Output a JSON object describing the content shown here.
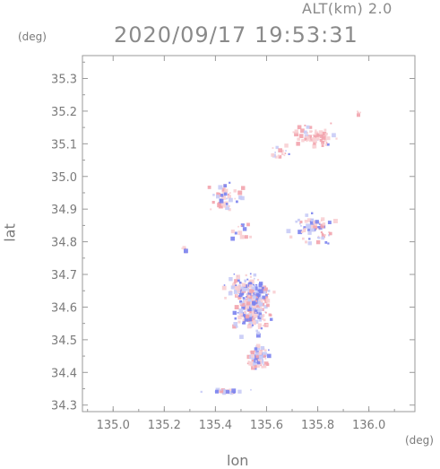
{
  "header": {
    "altitude_label": "ALT(km)  2.0",
    "timestamp": "2020/09/17 19:53:31"
  },
  "axes": {
    "x_label": "lon",
    "y_label": "lat",
    "x_unit": "(deg)",
    "y_unit": "(deg)",
    "x_ticks": [
      "135.0",
      "135.2",
      "135.4",
      "135.6",
      "135.8",
      "136.0"
    ],
    "y_ticks": [
      "34.3",
      "34.4",
      "34.5",
      "34.6",
      "34.7",
      "34.8",
      "34.9",
      "35.0",
      "35.1",
      "35.2",
      "35.3"
    ]
  },
  "map": {
    "lon_range": [
      134.88,
      136.18
    ],
    "lat_range": [
      34.28,
      35.37
    ],
    "colors": {
      "frame": "#9a9a9a",
      "positive": "#f2a3ad",
      "negative": "#7b83ee",
      "pale_positive": "#f8cfd3",
      "pale_negative": "#c8cbf6"
    },
    "echo_regions": [
      {
        "name": "north-east-band",
        "lon": 135.79,
        "lat": 35.125,
        "sx": 0.07,
        "sy": 0.025,
        "n": 70,
        "mix": 0.85
      },
      {
        "name": "north-east-tail",
        "lon": 135.66,
        "lat": 35.07,
        "sx": 0.04,
        "sy": 0.02,
        "n": 18,
        "mix": 0.8
      },
      {
        "name": "north-east-spot",
        "lon": 135.96,
        "lat": 35.195,
        "sx": 0.008,
        "sy": 0.006,
        "n": 4,
        "mix": 1.0
      },
      {
        "name": "north-patch",
        "lon": 135.44,
        "lat": 34.94,
        "sx": 0.05,
        "sy": 0.035,
        "n": 45,
        "mix": 0.55
      },
      {
        "name": "middle-east-patch",
        "lon": 135.78,
        "lat": 34.84,
        "sx": 0.06,
        "sy": 0.035,
        "n": 70,
        "mix": 0.45
      },
      {
        "name": "middle-patch",
        "lon": 135.5,
        "lat": 34.83,
        "sx": 0.03,
        "sy": 0.02,
        "n": 14,
        "mix": 0.4
      },
      {
        "name": "central-mass",
        "lon": 135.55,
        "lat": 34.6,
        "sx": 0.05,
        "sy": 0.06,
        "n": 260,
        "mix": 0.45
      },
      {
        "name": "central-upper",
        "lon": 135.52,
        "lat": 34.66,
        "sx": 0.06,
        "sy": 0.03,
        "n": 80,
        "mix": 0.45
      },
      {
        "name": "southern-tail",
        "lon": 135.57,
        "lat": 34.45,
        "sx": 0.03,
        "sy": 0.03,
        "n": 80,
        "mix": 0.5
      },
      {
        "name": "south-west-specks",
        "lon": 135.44,
        "lat": 34.34,
        "sx": 0.06,
        "sy": 0.008,
        "n": 25,
        "mix": 0.3
      },
      {
        "name": "west-specks",
        "lon": 135.28,
        "lat": 34.77,
        "sx": 0.01,
        "sy": 0.012,
        "n": 6,
        "mix": 0.3
      }
    ]
  }
}
